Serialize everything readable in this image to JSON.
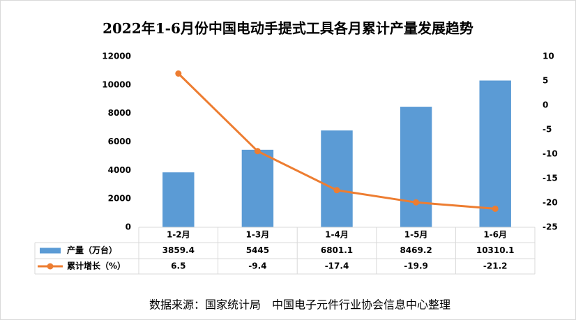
{
  "chart_data": {
    "type": "bar",
    "title": "2022年1-6月份中国电动手提式工具各月累计产量发展趋势",
    "categories": [
      "1-2月",
      "1-3月",
      "1-4月",
      "1-5月",
      "1-6月"
    ],
    "series": [
      {
        "name": "产量（万台）",
        "color": "#5b9bd5",
        "values": [
          3859.4,
          5445,
          6801.1,
          8469.2,
          10310.1
        ]
      },
      {
        "name": "累计增长（%）",
        "color": "#ed7d31",
        "type": "line",
        "axis": "y2",
        "values": [
          6.5,
          -9.4,
          -17.4,
          -19.9,
          -21.2
        ]
      }
    ],
    "ylim": [
      0,
      12000
    ],
    "yticks": [
      0,
      2000,
      4000,
      6000,
      8000,
      10000,
      12000
    ],
    "y2lim": [
      -25,
      10
    ],
    "y2ticks": [
      -25,
      -20,
      -15,
      -10,
      -5,
      0,
      5,
      10
    ],
    "grid": false,
    "source": "数据来源：国家统计局　中国电子元件行业协会信息中心整理"
  }
}
